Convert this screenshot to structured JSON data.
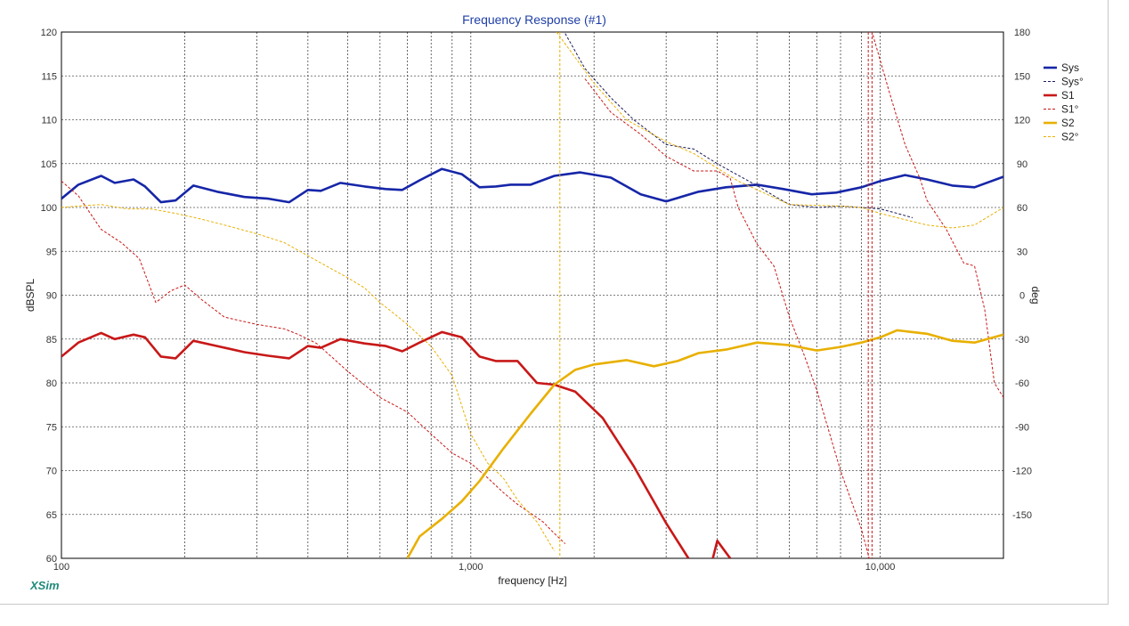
{
  "chart_data": {
    "type": "line",
    "title": "Frequency Response (#1)",
    "xlabel": "frequency [Hz]",
    "ylabel": "dBSPL",
    "y2label": "deg",
    "x_scale": "log",
    "xlim": [
      100,
      20000
    ],
    "ylim": [
      60,
      120
    ],
    "y2lim": [
      -180,
      180
    ],
    "grid": true,
    "legend_position": "right",
    "x_tick_labels": [
      {
        "value": 100,
        "label": "100"
      },
      {
        "value": 1000,
        "label": "1,000"
      },
      {
        "value": 10000,
        "label": "10,000"
      }
    ],
    "y_ticks": [
      60,
      65,
      70,
      75,
      80,
      85,
      90,
      95,
      100,
      105,
      110,
      115,
      120
    ],
    "y2_ticks": [
      -150,
      -120,
      -90,
      -60,
      -30,
      0,
      30,
      60,
      90,
      120,
      150,
      180
    ],
    "brand": "XSim",
    "series": [
      {
        "name": "Sys",
        "axis": "left",
        "style": "solid",
        "color": "#1626a8",
        "points": [
          [
            100,
            101
          ],
          [
            110,
            102.6
          ],
          [
            125,
            103.6
          ],
          [
            135,
            102.8
          ],
          [
            150,
            103.2
          ],
          [
            160,
            102.4
          ],
          [
            175,
            100.6
          ],
          [
            190,
            100.8
          ],
          [
            210,
            102.5
          ],
          [
            240,
            101.8
          ],
          [
            280,
            101.2
          ],
          [
            320,
            101
          ],
          [
            360,
            100.6
          ],
          [
            400,
            102
          ],
          [
            430,
            101.9
          ],
          [
            480,
            102.8
          ],
          [
            550,
            102.4
          ],
          [
            620,
            102.1
          ],
          [
            680,
            102
          ],
          [
            750,
            103.1
          ],
          [
            850,
            104.4
          ],
          [
            950,
            103.8
          ],
          [
            1050,
            102.3
          ],
          [
            1150,
            102.4
          ],
          [
            1250,
            102.6
          ],
          [
            1400,
            102.6
          ],
          [
            1600,
            103.6
          ],
          [
            1850,
            104
          ],
          [
            2200,
            103.4
          ],
          [
            2600,
            101.5
          ],
          [
            3000,
            100.7
          ],
          [
            3600,
            101.8
          ],
          [
            4200,
            102.3
          ],
          [
            5000,
            102.6
          ],
          [
            5800,
            102.1
          ],
          [
            6800,
            101.5
          ],
          [
            7800,
            101.7
          ],
          [
            9000,
            102.3
          ],
          [
            10000,
            103
          ],
          [
            11500,
            103.7
          ],
          [
            13000,
            103.2
          ],
          [
            15000,
            102.5
          ],
          [
            17000,
            102.3
          ],
          [
            20000,
            103.5
          ]
        ]
      },
      {
        "name": "Sys°",
        "axis": "right",
        "style": "dashed",
        "color": "#1b1b5a",
        "points": [
          [
            1700,
            179
          ],
          [
            1900,
            155
          ],
          [
            2200,
            135
          ],
          [
            2500,
            120
          ],
          [
            3000,
            103
          ],
          [
            3500,
            100
          ],
          [
            4000,
            90
          ],
          [
            4500,
            82
          ],
          [
            5000,
            75
          ],
          [
            5500,
            68
          ],
          [
            6000,
            62
          ],
          [
            7000,
            60
          ],
          [
            8000,
            61
          ],
          [
            9000,
            60
          ],
          [
            10000,
            59
          ],
          [
            11000,
            56
          ],
          [
            12000,
            53
          ]
        ]
      },
      {
        "name": "S1",
        "axis": "left",
        "style": "solid",
        "color": "#c81818",
        "points": [
          [
            100,
            83
          ],
          [
            110,
            84.6
          ],
          [
            125,
            85.7
          ],
          [
            135,
            85
          ],
          [
            150,
            85.5
          ],
          [
            160,
            85.2
          ],
          [
            175,
            83
          ],
          [
            190,
            82.8
          ],
          [
            210,
            84.8
          ],
          [
            240,
            84.2
          ],
          [
            280,
            83.5
          ],
          [
            320,
            83.1
          ],
          [
            360,
            82.8
          ],
          [
            400,
            84.2
          ],
          [
            430,
            84
          ],
          [
            480,
            85
          ],
          [
            550,
            84.5
          ],
          [
            620,
            84.2
          ],
          [
            680,
            83.6
          ],
          [
            750,
            84.6
          ],
          [
            850,
            85.8
          ],
          [
            950,
            85.2
          ],
          [
            1050,
            83
          ],
          [
            1150,
            82.5
          ],
          [
            1300,
            82.5
          ],
          [
            1450,
            80
          ],
          [
            1600,
            79.8
          ],
          [
            1800,
            79
          ],
          [
            2100,
            76
          ],
          [
            2500,
            70.5
          ],
          [
            3000,
            64
          ],
          [
            3400,
            60
          ]
        ]
      },
      {
        "name": "S1",
        "axis": "left",
        "style": "solid",
        "color": "#c81818",
        "points": [
          [
            3900,
            60
          ],
          [
            4000,
            62
          ],
          [
            4300,
            60
          ]
        ]
      },
      {
        "name": "S1°",
        "axis": "right",
        "style": "dashed",
        "color": "#c81818",
        "points": [
          [
            100,
            78
          ],
          [
            110,
            68
          ],
          [
            125,
            45
          ],
          [
            140,
            36
          ],
          [
            155,
            25
          ],
          [
            170,
            -5
          ],
          [
            185,
            3
          ],
          [
            200,
            7
          ],
          [
            220,
            -3
          ],
          [
            250,
            -15
          ],
          [
            300,
            -20
          ],
          [
            350,
            -23
          ],
          [
            380,
            -27
          ],
          [
            420,
            -33
          ],
          [
            500,
            -52
          ],
          [
            600,
            -70
          ],
          [
            700,
            -80
          ],
          [
            800,
            -95
          ],
          [
            900,
            -108
          ],
          [
            1000,
            -115
          ],
          [
            1100,
            -125
          ],
          [
            1200,
            -135
          ],
          [
            1300,
            -143
          ],
          [
            1500,
            -155
          ],
          [
            1600,
            -163
          ],
          [
            1700,
            -170
          ],
          [
            1900,
            148
          ],
          [
            2200,
            125
          ],
          [
            2600,
            110
          ],
          [
            3000,
            95
          ],
          [
            3500,
            85
          ],
          [
            4000,
            85
          ],
          [
            4300,
            80
          ],
          [
            4500,
            60
          ],
          [
            5000,
            35
          ],
          [
            5500,
            20
          ],
          [
            6000,
            -15
          ],
          [
            6500,
            -40
          ],
          [
            7000,
            -65
          ],
          [
            8000,
            -120
          ],
          [
            9000,
            -160
          ],
          [
            9400,
            -180
          ],
          [
            9600,
            178
          ],
          [
            10500,
            140
          ],
          [
            11500,
            103
          ],
          [
            12500,
            80
          ],
          [
            13000,
            65
          ],
          [
            14500,
            45
          ],
          [
            16000,
            22
          ],
          [
            17000,
            20
          ],
          [
            18000,
            -10
          ],
          [
            19000,
            -60
          ],
          [
            20000,
            -70
          ]
        ]
      },
      {
        "name": "S2",
        "axis": "left",
        "style": "solid",
        "color": "#e8b000",
        "points": [
          [
            700,
            60
          ],
          [
            750,
            62.5
          ],
          [
            850,
            64.5
          ],
          [
            950,
            66.5
          ],
          [
            1050,
            68.8
          ],
          [
            1200,
            72.5
          ],
          [
            1400,
            76.5
          ],
          [
            1600,
            79.8
          ],
          [
            1800,
            81.5
          ],
          [
            2000,
            82.1
          ],
          [
            2400,
            82.6
          ],
          [
            2800,
            81.9
          ],
          [
            3200,
            82.5
          ],
          [
            3600,
            83.4
          ],
          [
            4200,
            83.8
          ],
          [
            5000,
            84.6
          ],
          [
            6000,
            84.3
          ],
          [
            7000,
            83.7
          ],
          [
            8000,
            84.1
          ],
          [
            9000,
            84.6
          ],
          [
            10000,
            85.2
          ],
          [
            11000,
            86
          ],
          [
            13000,
            85.6
          ],
          [
            15000,
            84.8
          ],
          [
            17000,
            84.6
          ],
          [
            20000,
            85.5
          ]
        ]
      },
      {
        "name": "S2°",
        "axis": "right",
        "style": "dashed",
        "color": "#e8b000",
        "points": [
          [
            100,
            60
          ],
          [
            110,
            61
          ],
          [
            125,
            62
          ],
          [
            145,
            59
          ],
          [
            165,
            59
          ],
          [
            190,
            56
          ],
          [
            220,
            52
          ],
          [
            250,
            48
          ],
          [
            300,
            42
          ],
          [
            350,
            36
          ],
          [
            400,
            27
          ],
          [
            450,
            19
          ],
          [
            500,
            12
          ],
          [
            550,
            5
          ],
          [
            600,
            -5
          ],
          [
            700,
            -20
          ],
          [
            800,
            -35
          ],
          [
            900,
            -55
          ],
          [
            1000,
            -95
          ],
          [
            1100,
            -115
          ],
          [
            1200,
            -125
          ],
          [
            1300,
            -140
          ],
          [
            1450,
            -155
          ],
          [
            1600,
            -175
          ],
          [
            1605,
            180
          ],
          [
            1610,
            -180
          ],
          [
            1620,
            180
          ],
          [
            2000,
            145
          ],
          [
            2400,
            120
          ],
          [
            3000,
            105
          ],
          [
            3500,
            97
          ],
          [
            4500,
            78
          ],
          [
            6000,
            62
          ],
          [
            8000,
            61
          ],
          [
            9000,
            60
          ],
          [
            10000,
            56
          ],
          [
            11000,
            53
          ],
          [
            13000,
            48
          ],
          [
            15000,
            46
          ],
          [
            17000,
            48
          ],
          [
            20000,
            60
          ]
        ]
      }
    ]
  }
}
